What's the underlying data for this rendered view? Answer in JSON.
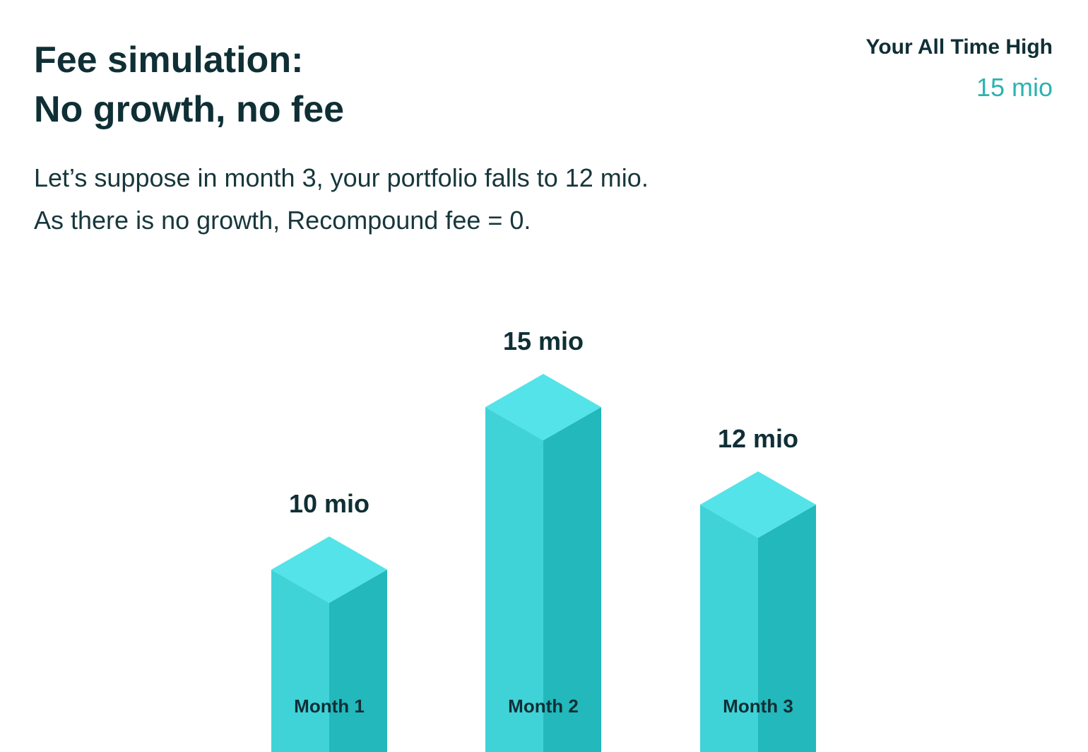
{
  "header": {
    "title_line1": "Fee simulation:",
    "title_line2": "No growth, no fee"
  },
  "all_time_high": {
    "label": "Your All Time High",
    "value": "15 mio"
  },
  "description": {
    "line1": "Let’s suppose in month 3, your portfolio falls to 12 mio.",
    "line2": "As there is no growth, Recompound fee = 0."
  },
  "colors": {
    "text_dark": "#0f2f35",
    "accent": "#2bb3b1",
    "bar_top": "#54e3e8",
    "bar_left": "#3fd3d8",
    "bar_right": "#22b8bc"
  },
  "chart_data": {
    "type": "bar",
    "style": "isometric 3D columns",
    "categories": [
      "Month 1",
      "Month 2",
      "Month 3"
    ],
    "values": [
      10,
      15,
      12
    ],
    "value_labels": [
      "10 mio",
      "15 mio",
      "12 mio"
    ],
    "unit": "mio",
    "grid": false,
    "axes_visible": false,
    "legend": "none"
  }
}
